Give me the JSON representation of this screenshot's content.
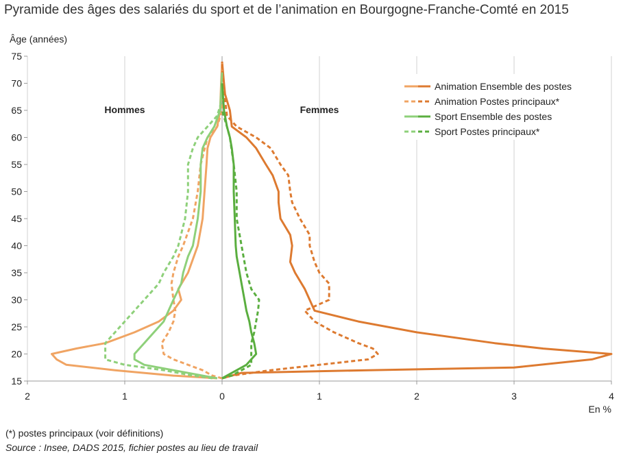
{
  "title": "Pyramide des âges des salariés du sport et de l’animation en Bourgogne-Franche-Comté en 2015",
  "footnote": "(*) postes principaux (voir définitions)",
  "source": "Source : Insee, DADS 2015, fichier postes au lieu de travail",
  "chart_data": {
    "type": "line",
    "title": "Pyramide des âges des salariés du sport et de l’animation en Bourgogne-Franche-Comté en 2015",
    "ylabel": "Âge (années)",
    "xlabel": "En %",
    "ylim": [
      15,
      75
    ],
    "xlim": [
      -2,
      4
    ],
    "yticks": [
      "15",
      "20",
      "25",
      "30",
      "35",
      "40",
      "45",
      "50",
      "55",
      "60",
      "65",
      "70",
      "75"
    ],
    "xticks": [
      "2",
      "1",
      "0",
      "1",
      "2",
      "3",
      "4"
    ],
    "side_labels": {
      "men": "Hommes",
      "women": "Femmes"
    },
    "legend_position": "top-right",
    "series": [
      {
        "name": "Animation Ensemble des postes",
        "dashed": false,
        "color_men": "#f0a463",
        "color_women": "#dd7a30",
        "men": [
          [
            15.5,
            -0.05
          ],
          [
            16,
            -0.5
          ],
          [
            17,
            -1.1
          ],
          [
            18,
            -1.6
          ],
          [
            19,
            -1.7
          ],
          [
            20,
            -1.75
          ],
          [
            21,
            -1.5
          ],
          [
            22,
            -1.2
          ],
          [
            24,
            -0.9
          ],
          [
            26,
            -0.65
          ],
          [
            28,
            -0.5
          ],
          [
            30,
            -0.42
          ],
          [
            32,
            -0.45
          ],
          [
            35,
            -0.35
          ],
          [
            40,
            -0.25
          ],
          [
            45,
            -0.2
          ],
          [
            50,
            -0.18
          ],
          [
            55,
            -0.16
          ],
          [
            58,
            -0.15
          ],
          [
            60,
            -0.12
          ],
          [
            62,
            -0.05
          ],
          [
            65,
            -0.02
          ],
          [
            70,
            -0.01
          ],
          [
            74,
            0
          ]
        ],
        "women": [
          [
            15.5,
            0
          ],
          [
            16.5,
            0.2
          ],
          [
            17,
            1.5
          ],
          [
            17.5,
            3
          ],
          [
            19,
            3.8
          ],
          [
            20,
            4.0
          ],
          [
            21,
            3.3
          ],
          [
            22,
            2.8
          ],
          [
            24,
            2.0
          ],
          [
            26,
            1.4
          ],
          [
            28,
            0.95
          ],
          [
            30,
            0.9
          ],
          [
            32,
            0.85
          ],
          [
            35,
            0.75
          ],
          [
            37,
            0.7
          ],
          [
            40,
            0.72
          ],
          [
            42,
            0.7
          ],
          [
            45,
            0.6
          ],
          [
            48,
            0.58
          ],
          [
            50,
            0.58
          ],
          [
            53,
            0.52
          ],
          [
            55,
            0.45
          ],
          [
            58,
            0.35
          ],
          [
            60,
            0.25
          ],
          [
            62,
            0.1
          ],
          [
            65,
            0.08
          ],
          [
            68,
            0.03
          ],
          [
            70,
            0.02
          ],
          [
            74,
            0
          ]
        ]
      },
      {
        "name": "Animation Postes principaux*",
        "dashed": true,
        "color_men": "#f0a463",
        "color_women": "#dd7a30",
        "men": [
          [
            15.5,
            0
          ],
          [
            16,
            -0.1
          ],
          [
            17,
            -0.2
          ],
          [
            18,
            -0.35
          ],
          [
            19,
            -0.5
          ],
          [
            20,
            -0.6
          ],
          [
            22,
            -0.62
          ],
          [
            24,
            -0.55
          ],
          [
            26,
            -0.5
          ],
          [
            28,
            -0.48
          ],
          [
            30,
            -0.5
          ],
          [
            33,
            -0.52
          ],
          [
            35,
            -0.5
          ],
          [
            38,
            -0.45
          ],
          [
            40,
            -0.4
          ],
          [
            45,
            -0.3
          ],
          [
            50,
            -0.25
          ],
          [
            55,
            -0.22
          ],
          [
            60,
            -0.15
          ],
          [
            62,
            -0.05
          ],
          [
            65,
            0
          ],
          [
            74,
            0
          ]
        ],
        "women": [
          [
            15.5,
            0
          ],
          [
            16,
            0.1
          ],
          [
            17,
            0.5
          ],
          [
            18,
            1.0
          ],
          [
            19,
            1.5
          ],
          [
            20,
            1.6
          ],
          [
            21,
            1.55
          ],
          [
            22,
            1.4
          ],
          [
            24,
            1.15
          ],
          [
            26,
            0.95
          ],
          [
            28,
            0.85
          ],
          [
            30,
            1.1
          ],
          [
            33,
            1.1
          ],
          [
            35,
            1.0
          ],
          [
            37,
            0.95
          ],
          [
            40,
            0.9
          ],
          [
            42,
            0.9
          ],
          [
            45,
            0.8
          ],
          [
            48,
            0.72
          ],
          [
            50,
            0.7
          ],
          [
            53,
            0.68
          ],
          [
            55,
            0.6
          ],
          [
            58,
            0.5
          ],
          [
            60,
            0.35
          ],
          [
            62,
            0.15
          ],
          [
            64,
            0.05
          ],
          [
            70,
            0.01
          ],
          [
            74,
            0
          ]
        ]
      },
      {
        "name": "Sport Ensemble des postes",
        "dashed": false,
        "color_men": "#8ed07a",
        "color_women": "#5aae3f",
        "men": [
          [
            15.5,
            -0.05
          ],
          [
            16,
            -0.2
          ],
          [
            17,
            -0.5
          ],
          [
            18,
            -0.8
          ],
          [
            19,
            -0.9
          ],
          [
            20,
            -0.9
          ],
          [
            21,
            -0.85
          ],
          [
            22,
            -0.8
          ],
          [
            24,
            -0.7
          ],
          [
            26,
            -0.6
          ],
          [
            28,
            -0.55
          ],
          [
            30,
            -0.5
          ],
          [
            33,
            -0.42
          ],
          [
            35,
            -0.4
          ],
          [
            38,
            -0.35
          ],
          [
            40,
            -0.3
          ],
          [
            45,
            -0.25
          ],
          [
            50,
            -0.22
          ],
          [
            55,
            -0.22
          ],
          [
            58,
            -0.2
          ],
          [
            60,
            -0.15
          ],
          [
            62,
            -0.08
          ],
          [
            65,
            -0.02
          ],
          [
            72,
            0
          ]
        ],
        "women": [
          [
            15.5,
            0
          ],
          [
            16,
            0.05
          ],
          [
            17,
            0.15
          ],
          [
            18,
            0.25
          ],
          [
            19,
            0.3
          ],
          [
            20,
            0.35
          ],
          [
            22,
            0.33
          ],
          [
            24,
            0.3
          ],
          [
            26,
            0.28
          ],
          [
            28,
            0.25
          ],
          [
            30,
            0.23
          ],
          [
            33,
            0.2
          ],
          [
            35,
            0.18
          ],
          [
            38,
            0.15
          ],
          [
            40,
            0.14
          ],
          [
            45,
            0.13
          ],
          [
            50,
            0.12
          ],
          [
            55,
            0.12
          ],
          [
            58,
            0.1
          ],
          [
            60,
            0.08
          ],
          [
            62,
            0.05
          ],
          [
            65,
            0.02
          ],
          [
            70,
            0
          ]
        ]
      },
      {
        "name": "Sport Postes principaux*",
        "dashed": true,
        "color_men": "#8ed07a",
        "color_women": "#5aae3f",
        "men": [
          [
            15.5,
            -0.1
          ],
          [
            16,
            -0.3
          ],
          [
            17,
            -0.6
          ],
          [
            18,
            -1.0
          ],
          [
            19,
            -1.2
          ],
          [
            20,
            -1.2
          ],
          [
            22,
            -1.2
          ],
          [
            24,
            -1.1
          ],
          [
            26,
            -1.0
          ],
          [
            28,
            -0.9
          ],
          [
            30,
            -0.8
          ],
          [
            33,
            -0.65
          ],
          [
            35,
            -0.6
          ],
          [
            38,
            -0.5
          ],
          [
            40,
            -0.45
          ],
          [
            45,
            -0.38
          ],
          [
            50,
            -0.35
          ],
          [
            55,
            -0.35
          ],
          [
            58,
            -0.3
          ],
          [
            60,
            -0.25
          ],
          [
            62,
            -0.15
          ],
          [
            64,
            -0.05
          ],
          [
            67,
            0
          ]
        ],
        "women": [
          [
            15.5,
            0
          ],
          [
            16,
            0.1
          ],
          [
            17,
            0.2
          ],
          [
            18,
            0.3
          ],
          [
            20,
            0.3
          ],
          [
            22,
            0.3
          ],
          [
            24,
            0.33
          ],
          [
            26,
            0.35
          ],
          [
            28,
            0.37
          ],
          [
            30,
            0.38
          ],
          [
            32,
            0.3
          ],
          [
            35,
            0.25
          ],
          [
            40,
            0.2
          ],
          [
            45,
            0.15
          ],
          [
            50,
            0.15
          ],
          [
            55,
            0.12
          ],
          [
            60,
            0.08
          ],
          [
            62,
            0.05
          ],
          [
            65,
            0
          ]
        ]
      }
    ]
  }
}
